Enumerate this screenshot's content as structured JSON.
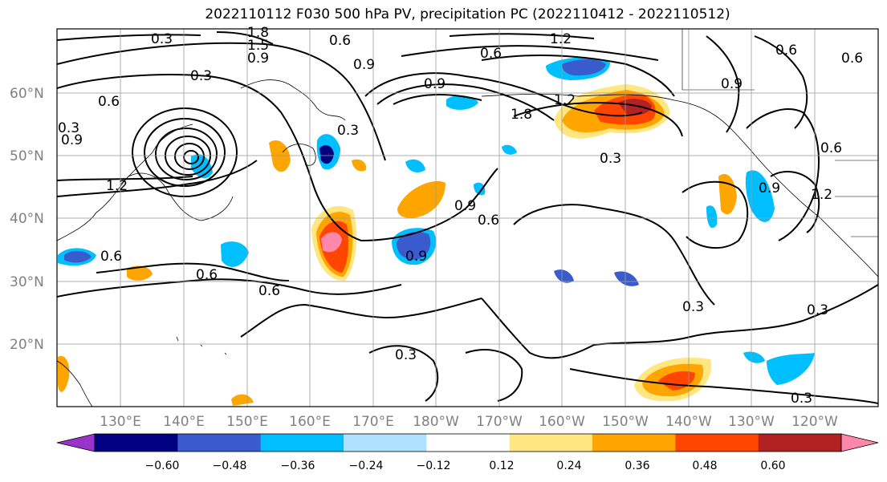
{
  "title": "2022110112 F030 500 hPa PV, precipitation PC (2022110412 - 2022110512)",
  "map": {
    "lat_labels": [
      "60°N",
      "50°N",
      "40°N",
      "30°N",
      "20°N"
    ],
    "lon_labels": [
      "130°E",
      "140°E",
      "150°E",
      "160°E",
      "170°E",
      "180°W",
      "170°W",
      "160°W",
      "150°W",
      "140°W",
      "130°W",
      "120°W"
    ],
    "contour_labels": [
      "0.3",
      "0.6",
      "0.9",
      "1.2",
      "1.5",
      "1.8",
      "0.9",
      "0.6",
      "0.3",
      "0.6",
      "0.9",
      "1.2",
      "0.6",
      "0.9",
      "0.3",
      "0.3",
      "0.6",
      "0.3",
      "0.6",
      "0.9",
      "1.2",
      "1.8",
      "0.3",
      "0.6",
      "0.3",
      "0.3",
      "0.6",
      "0.9",
      "0.9",
      "1.2",
      "0.6",
      "0.9",
      "0.6",
      "0.3"
    ]
  },
  "colorbar": {
    "ticks": [
      "−0.60",
      "−0.48",
      "−0.36",
      "−0.24",
      "−0.12",
      "0.12",
      "0.24",
      "0.36",
      "0.48",
      "0.60"
    ],
    "colors": [
      "#9933cc",
      "#000080",
      "#3a5bcd",
      "#00bfff",
      "#b0e0ff",
      "#ffffff",
      "#ffe680",
      "#ffa500",
      "#ff4500",
      "#b22222",
      "#ff88aa"
    ]
  }
}
